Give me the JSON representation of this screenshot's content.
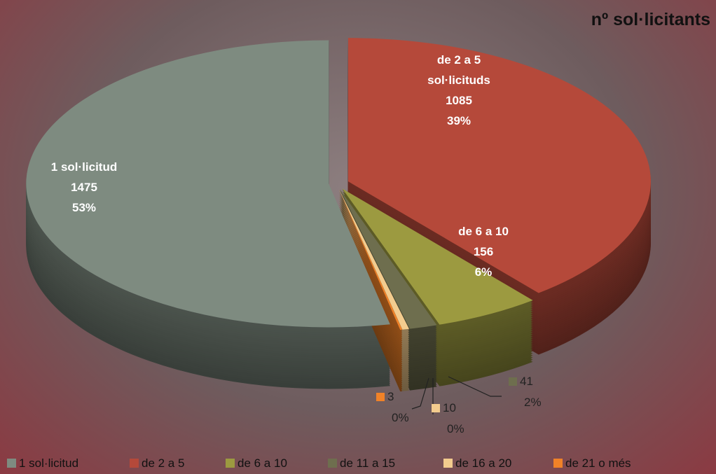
{
  "chart_data": {
    "type": "pie",
    "title": "nº sol·licitants",
    "categories": [
      "1 sol·licitud",
      "de 2 a 5",
      "de 6 a 10",
      "de 11 a 15",
      "de 16 a 20",
      "de 21 o més"
    ],
    "values": [
      1475,
      1085,
      156,
      41,
      10,
      3
    ],
    "percent_labels": [
      "53%",
      "39%",
      "6%",
      "2%",
      "0%",
      "0%"
    ],
    "slice_labels": [
      "1 sol·licitud",
      "de 2 a 5 sol·licituds",
      "de 6 a 10",
      null,
      null,
      null
    ],
    "colors": [
      "#7e8b80",
      "#b5493a",
      "#9c9a40",
      "#6e6e4e",
      "#f3cc8e",
      "#f08228"
    ],
    "legend": "bottom"
  }
}
